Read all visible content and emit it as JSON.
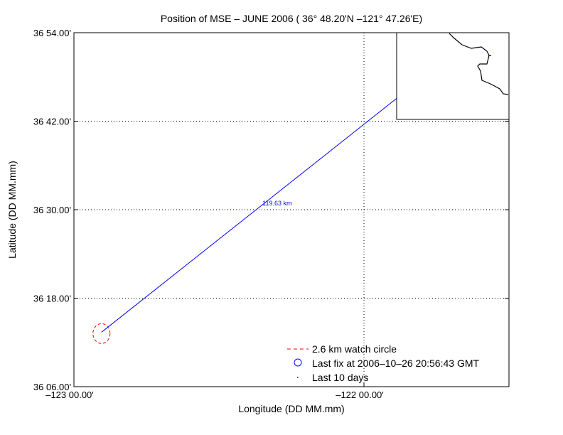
{
  "chart_data": {
    "type": "line",
    "title": "Position of MSE – JUNE 2006 ( 36° 48.20'N –121° 47.26'E)",
    "xlabel": "Longitude (DD MM.mm)",
    "ylabel": "Latitude (DD MM.mm)",
    "xlim": [
      -123.0,
      -121.5
    ],
    "ylim": [
      36.1,
      36.9
    ],
    "x_ticks": [
      {
        "value": -123.0,
        "label": "–123 00.00'"
      },
      {
        "value": -122.0,
        "label": "–122 00.00'"
      }
    ],
    "y_ticks": [
      {
        "value": 36.9,
        "label": "36 54.00'"
      },
      {
        "value": 36.7,
        "label": "36 42.00'"
      },
      {
        "value": 36.5,
        "label": "36 30.00'"
      },
      {
        "value": 36.3,
        "label": "36 18.00'"
      },
      {
        "value": 36.1,
        "label": "36 06.00'"
      }
    ],
    "grid": "dotted",
    "series": [
      {
        "name": "track",
        "color": "#0000ff",
        "points": [
          [
            -122.905,
            36.223
          ],
          [
            -121.7877,
            36.8033
          ]
        ]
      }
    ],
    "watch_circle": {
      "center": [
        -122.905,
        36.22
      ],
      "radius_km": 2.6,
      "color": "#ff0000"
    },
    "distance_label": {
      "text": "119.63 km",
      "at": [
        -122.35,
        36.51
      ]
    },
    "legend": {
      "placement": "bottom-right",
      "entries": [
        {
          "label": "2.6 km watch circle",
          "marker": "dashed-line",
          "color": "#ff0000"
        },
        {
          "label": "Last fix at 2006–10–26 20:56:43 GMT",
          "marker": "circle",
          "color": "#0000ff"
        },
        {
          "label": "Last 10 days",
          "marker": "dot",
          "color": "#000000"
        }
      ]
    },
    "inset": {
      "placement": "top-right",
      "content": "coastline map"
    }
  }
}
